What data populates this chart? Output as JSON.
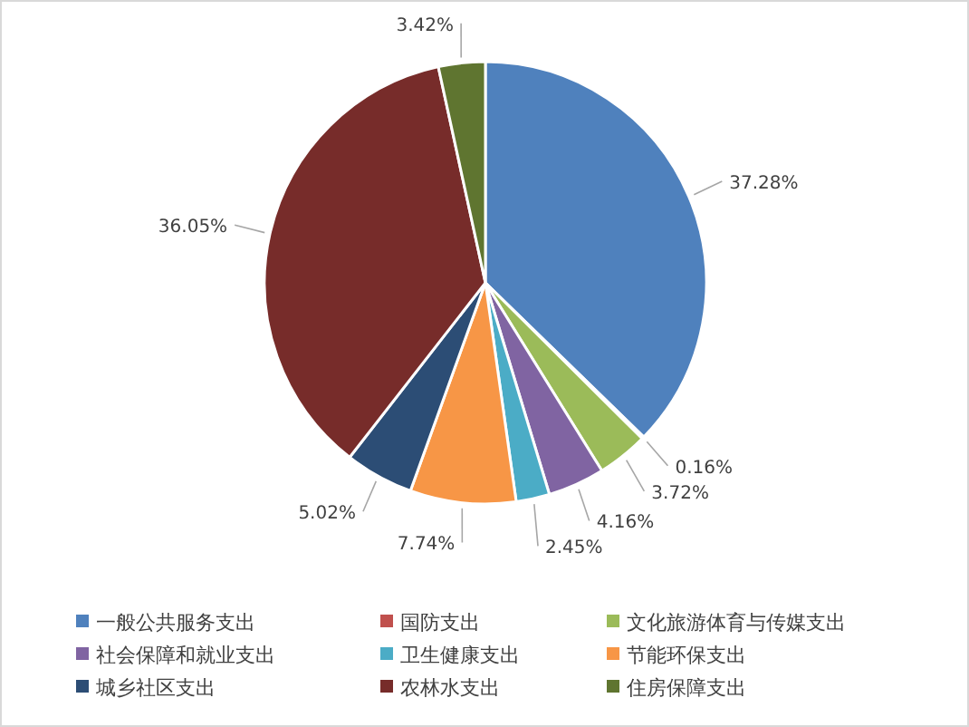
{
  "chart_data": {
    "type": "pie",
    "categories": [
      "一般公共服务支出",
      "国防支出",
      "文化旅游体育与传媒支出",
      "社会保障和就业支出",
      "卫生健康支出",
      "节能环保支出",
      "城乡社区支出",
      "农林水支出",
      "住房保障支出"
    ],
    "values": [
      37.28,
      0.16,
      3.72,
      4.16,
      2.45,
      7.74,
      5.02,
      36.05,
      3.42
    ],
    "colors": [
      "#4f81bd",
      "#c0504d",
      "#9bbb59",
      "#8064a2",
      "#4bacc6",
      "#f79646",
      "#2c4d75",
      "#772c2a",
      "#5f7530"
    ],
    "value_labels": [
      "37.28%",
      "0.16%",
      "3.72%",
      "4.16%",
      "2.45%",
      "7.74%",
      "5.02%",
      "36.05%",
      "3.42%"
    ],
    "legend": "bottom"
  }
}
